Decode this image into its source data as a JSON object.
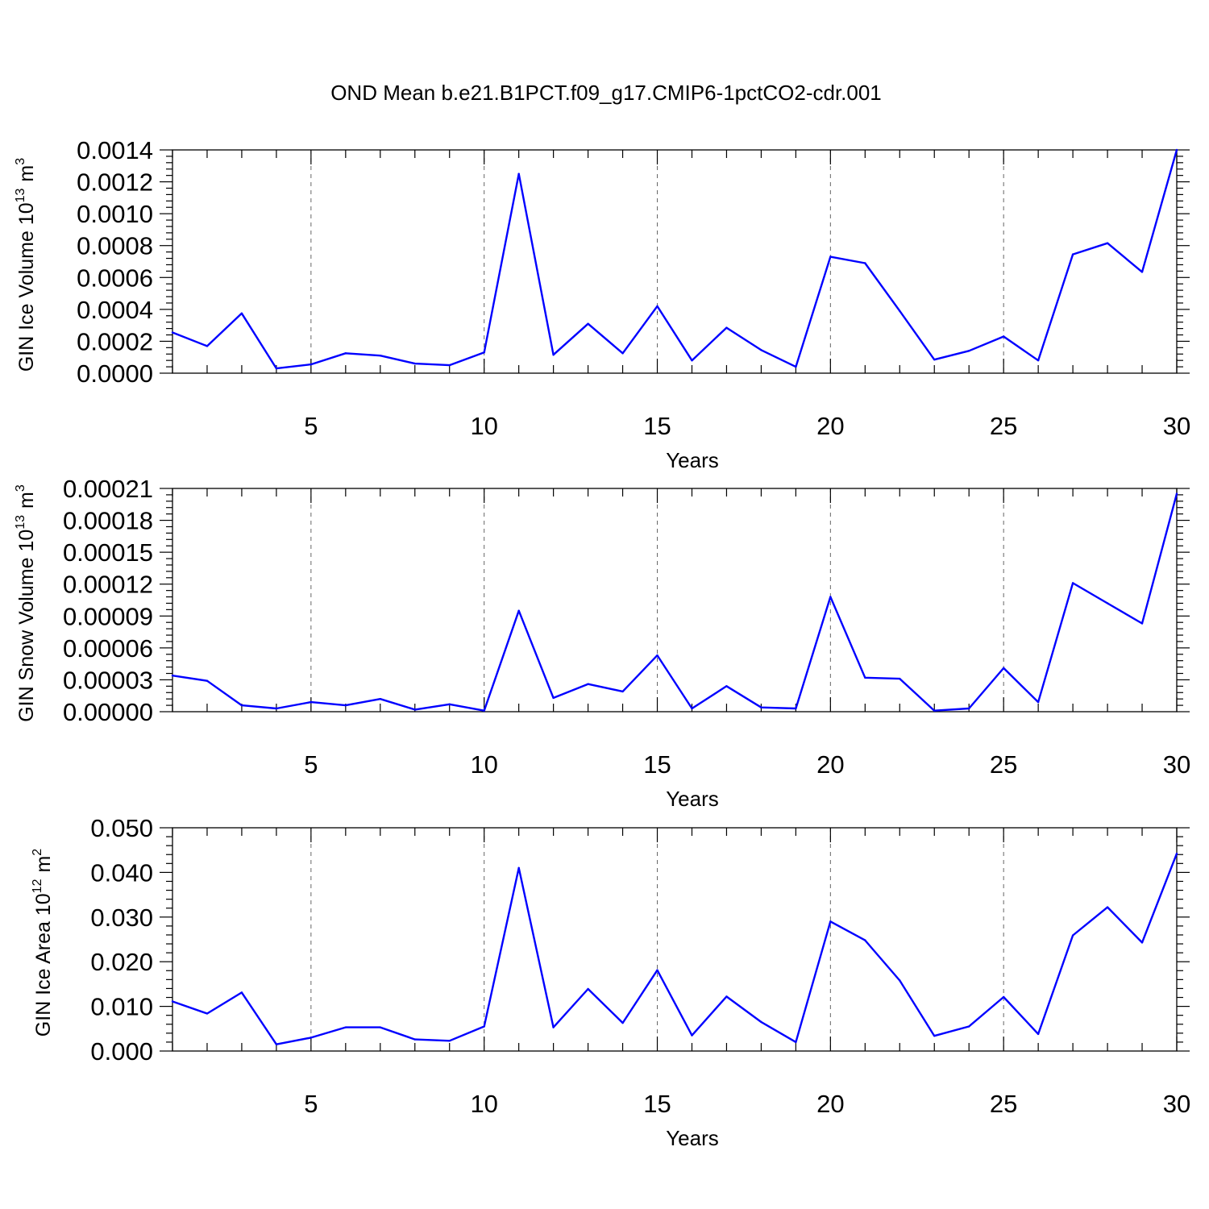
{
  "title": "OND Mean b.e21.B1PCT.f09_g17.CMIP6-1pctCO2-cdr.001",
  "colors": {
    "line": "#0000ff",
    "axis": "#000000",
    "grid": "#666666"
  },
  "chart_data": [
    {
      "type": "line",
      "xlabel": "Years",
      "ylabel_text": "GIN Ice Volume 10",
      "ylabel_exp": "13",
      "ylabel_unit": "m",
      "ylabel_unit_exp": "3",
      "xlim": [
        1,
        30
      ],
      "ylim": [
        0,
        0.0014
      ],
      "x_ticks": [
        5,
        10,
        15,
        20,
        25,
        30
      ],
      "x_tick_labels": [
        "5",
        "10",
        "15",
        "20",
        "25",
        "30"
      ],
      "y_ticks": [
        0,
        0.0002,
        0.0004,
        0.0006,
        0.0008,
        0.001,
        0.0012,
        0.0014
      ],
      "y_tick_labels": [
        "0.0000",
        "0.0002",
        "0.0004",
        "0.0006",
        "0.0008",
        "0.0010",
        "0.0012",
        "0.0014"
      ],
      "x": [
        1,
        2,
        3,
        4,
        5,
        6,
        7,
        8,
        9,
        10,
        11,
        12,
        13,
        14,
        15,
        16,
        17,
        18,
        19,
        20,
        21,
        22,
        23,
        24,
        25,
        26,
        27,
        28,
        29,
        30
      ],
      "series": [
        {
          "name": "GIN Ice Volume",
          "values": [
            0.000255,
            0.00017,
            0.000375,
            3e-05,
            5.5e-05,
            0.000125,
            0.00011,
            6e-05,
            5e-05,
            0.00013,
            0.00125,
            0.000115,
            0.00031,
            0.000125,
            0.00042,
            8e-05,
            0.000285,
            0.000145,
            4e-05,
            0.00073,
            0.00069,
            0.00039,
            8.5e-05,
            0.00014,
            0.00023,
            8e-05,
            0.000745,
            0.000815,
            0.000635,
            0.0014
          ]
        }
      ]
    },
    {
      "type": "line",
      "xlabel": "Years",
      "ylabel_text": "GIN Snow Volume 10",
      "ylabel_exp": "13",
      "ylabel_unit": "m",
      "ylabel_unit_exp": "3",
      "xlim": [
        1,
        30
      ],
      "ylim": [
        0,
        0.00021
      ],
      "x_ticks": [
        5,
        10,
        15,
        20,
        25,
        30
      ],
      "x_tick_labels": [
        "5",
        "10",
        "15",
        "20",
        "25",
        "30"
      ],
      "y_ticks": [
        0,
        3e-05,
        6e-05,
        9e-05,
        0.00012,
        0.00015,
        0.00018,
        0.00021
      ],
      "y_tick_labels": [
        "0.00000",
        "0.00003",
        "0.00006",
        "0.00009",
        "0.00012",
        "0.00015",
        "0.00018",
        "0.00021"
      ],
      "x": [
        1,
        2,
        3,
        4,
        5,
        6,
        7,
        8,
        9,
        10,
        11,
        12,
        13,
        14,
        15,
        16,
        17,
        18,
        19,
        20,
        21,
        22,
        23,
        24,
        25,
        26,
        27,
        28,
        29,
        30
      ],
      "series": [
        {
          "name": "GIN Snow Volume",
          "values": [
            3.4e-05,
            2.9e-05,
            6e-06,
            3e-06,
            9e-06,
            6e-06,
            1.2e-05,
            2e-06,
            7e-06,
            1e-06,
            9.5e-05,
            1.3e-05,
            2.6e-05,
            1.9e-05,
            5.3e-05,
            3e-06,
            2.4e-05,
            4e-06,
            3e-06,
            0.000108,
            3.2e-05,
            3.1e-05,
            1e-06,
            3e-06,
            4.1e-05,
            9e-06,
            0.000121,
            0.000102,
            8.3e-05,
            0.000205
          ]
        }
      ]
    },
    {
      "type": "line",
      "xlabel": "Years",
      "ylabel_text": "GIN Ice Area 10",
      "ylabel_exp": "12",
      "ylabel_unit": "m",
      "ylabel_unit_exp": "2",
      "xlim": [
        1,
        30
      ],
      "ylim": [
        0,
        0.05
      ],
      "x_ticks": [
        5,
        10,
        15,
        20,
        25,
        30
      ],
      "x_tick_labels": [
        "5",
        "10",
        "15",
        "20",
        "25",
        "30"
      ],
      "y_ticks": [
        0,
        0.01,
        0.02,
        0.03,
        0.04,
        0.05
      ],
      "y_tick_labels": [
        "0.000",
        "0.010",
        "0.020",
        "0.030",
        "0.040",
        "0.050"
      ],
      "x": [
        1,
        2,
        3,
        4,
        5,
        6,
        7,
        8,
        9,
        10,
        11,
        12,
        13,
        14,
        15,
        16,
        17,
        18,
        19,
        20,
        21,
        22,
        23,
        24,
        25,
        26,
        27,
        28,
        29,
        30
      ],
      "series": [
        {
          "name": "GIN Ice Area",
          "values": [
            0.0111,
            0.0084,
            0.0131,
            0.0015,
            0.003,
            0.0053,
            0.0053,
            0.0026,
            0.0023,
            0.0055,
            0.041,
            0.0053,
            0.0139,
            0.0063,
            0.0181,
            0.0035,
            0.0122,
            0.0065,
            0.002,
            0.029,
            0.0248,
            0.0158,
            0.0034,
            0.0055,
            0.0121,
            0.0038,
            0.0259,
            0.0322,
            0.0243,
            0.0442
          ]
        }
      ]
    }
  ]
}
